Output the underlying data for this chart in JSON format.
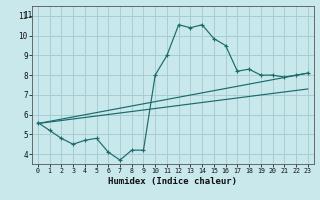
{
  "xlabel": "Humidex (Indice chaleur)",
  "bg_color": "#c8e8ec",
  "grid_color": "#a8cdd4",
  "line_color": "#1a6b6b",
  "xlim": [
    -0.5,
    23.5
  ],
  "ylim": [
    3.5,
    11.5
  ],
  "xticks": [
    0,
    1,
    2,
    3,
    4,
    5,
    6,
    7,
    8,
    9,
    10,
    11,
    12,
    13,
    14,
    15,
    16,
    17,
    18,
    19,
    20,
    21,
    22,
    23
  ],
  "yticks": [
    4,
    5,
    6,
    7,
    8,
    9,
    10,
    11
  ],
  "main_x": [
    0,
    1,
    2,
    3,
    4,
    5,
    6,
    7,
    8,
    9,
    10,
    11,
    12,
    13,
    14,
    15,
    16,
    17,
    18,
    19,
    20,
    21,
    22,
    23
  ],
  "main_y": [
    5.6,
    5.2,
    4.8,
    4.5,
    4.7,
    4.8,
    4.1,
    3.7,
    4.2,
    4.2,
    8.0,
    9.0,
    10.55,
    10.4,
    10.55,
    9.85,
    9.5,
    8.2,
    8.3,
    8.0,
    8.0,
    7.9,
    8.0,
    8.1
  ],
  "line2_x": [
    0,
    23
  ],
  "line2_y": [
    5.55,
    8.1
  ],
  "line3_x": [
    0,
    23
  ],
  "line3_y": [
    5.55,
    7.3
  ]
}
